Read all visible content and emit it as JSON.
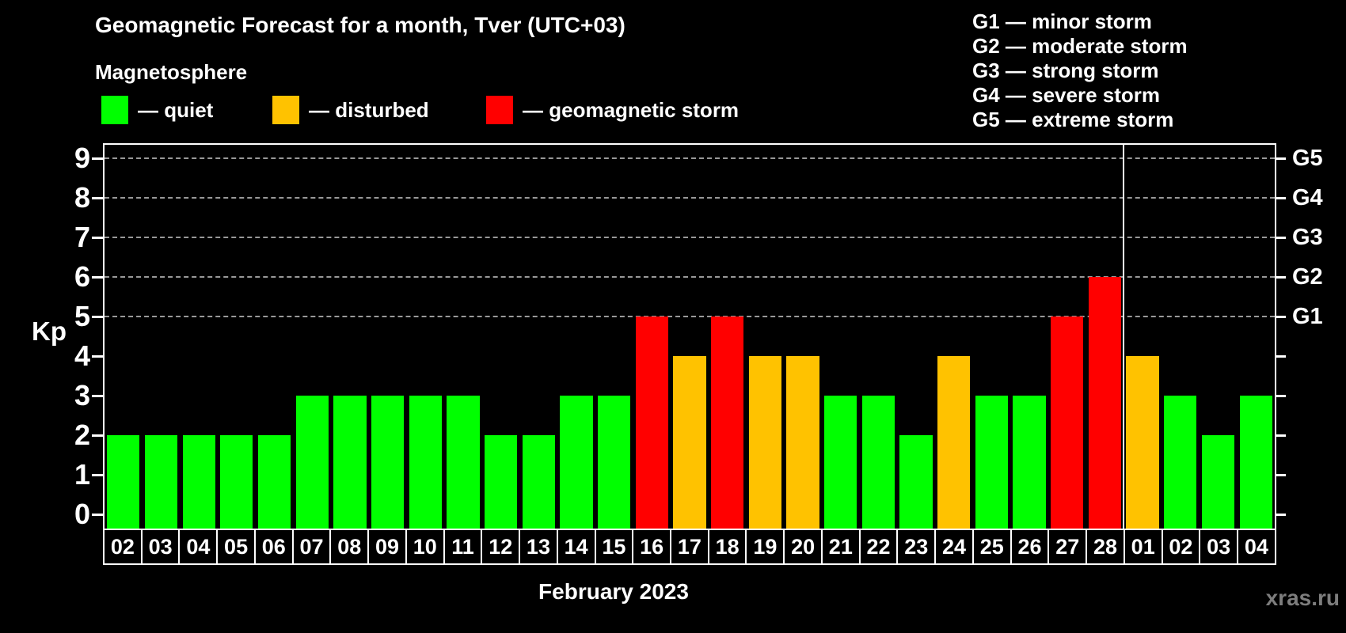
{
  "header": {
    "title": "Geomagnetic Forecast for a month, Tver (UTC+03)"
  },
  "magnetosphere_legend": {
    "title": "Magnetosphere",
    "items": [
      {
        "key": "quiet",
        "label": "— quiet",
        "color": "#00ff00"
      },
      {
        "key": "disturbed",
        "label": "— disturbed",
        "color": "#ffc200"
      },
      {
        "key": "storm",
        "label": "— geomagnetic storm",
        "color": "#ff0000"
      }
    ]
  },
  "g_scale_legend": [
    "G1 — minor storm",
    "G2 — moderate storm",
    "G3 — strong storm",
    "G4 — severe storm",
    "G5 — extreme storm"
  ],
  "footer": {
    "watermark": "xras.ru"
  },
  "chart_data": {
    "type": "bar",
    "title": "Geomagnetic Forecast for a month, Tver (UTC+03)",
    "xlabel": "February 2023",
    "ylabel": "Kp",
    "ylim": [
      0,
      9
    ],
    "yticks": [
      0,
      1,
      2,
      3,
      4,
      5,
      6,
      7,
      8,
      9
    ],
    "grid_levels": [
      5,
      6,
      7,
      8,
      9
    ],
    "right_axis": [
      {
        "kp": 5,
        "label": "G1"
      },
      {
        "kp": 6,
        "label": "G2"
      },
      {
        "kp": 7,
        "label": "G3"
      },
      {
        "kp": 8,
        "label": "G4"
      },
      {
        "kp": 9,
        "label": "G5"
      }
    ],
    "legend_position": "top",
    "grid": "dashed, levels 5-9 only",
    "month_divider_after_index": 26,
    "categories": [
      "02",
      "03",
      "04",
      "05",
      "06",
      "07",
      "08",
      "09",
      "10",
      "11",
      "12",
      "13",
      "14",
      "15",
      "16",
      "17",
      "18",
      "19",
      "20",
      "21",
      "22",
      "23",
      "24",
      "25",
      "26",
      "27",
      "28",
      "01",
      "02",
      "03",
      "04"
    ],
    "values": [
      2,
      2,
      2,
      2,
      2,
      3,
      3,
      3,
      3,
      3,
      2,
      2,
      3,
      3,
      5,
      4,
      5,
      4,
      4,
      3,
      3,
      2,
      4,
      3,
      3,
      5,
      6,
      4,
      3,
      2,
      3
    ],
    "statuses": [
      "quiet",
      "quiet",
      "quiet",
      "quiet",
      "quiet",
      "quiet",
      "quiet",
      "quiet",
      "quiet",
      "quiet",
      "quiet",
      "quiet",
      "quiet",
      "quiet",
      "storm",
      "disturbed",
      "storm",
      "disturbed",
      "disturbed",
      "quiet",
      "quiet",
      "quiet",
      "disturbed",
      "quiet",
      "quiet",
      "storm",
      "storm",
      "disturbed",
      "quiet",
      "quiet",
      "quiet"
    ]
  }
}
